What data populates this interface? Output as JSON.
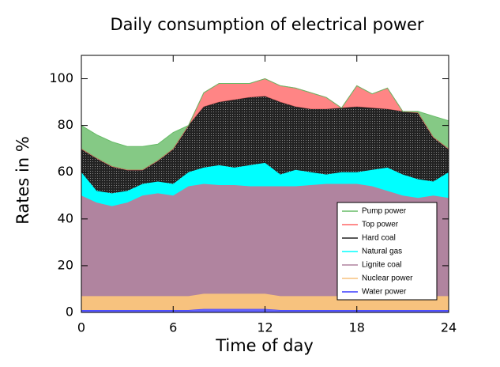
{
  "chart_data": {
    "type": "stacked_area",
    "title": "Daily consumption of electrical power",
    "x_label": "Time of day",
    "y_label": "Rates in %",
    "x": [
      0,
      1,
      2,
      3,
      4,
      5,
      6,
      7,
      8,
      9,
      10,
      11,
      12,
      13,
      14,
      15,
      16,
      17,
      18,
      19,
      20,
      21,
      22,
      23,
      24
    ],
    "xlim": [
      0,
      24
    ],
    "xticks": [
      0,
      6,
      12,
      18,
      24
    ],
    "ylim": [
      0,
      110
    ],
    "yticks": [
      0,
      20,
      40,
      60,
      80,
      100
    ],
    "legend_position": "lower right",
    "series": [
      {
        "name": "Water power",
        "color": "#3a3aff",
        "values": [
          1,
          1,
          1,
          1,
          1,
          1,
          1,
          1,
          1.5,
          1.5,
          1.5,
          1.5,
          1.5,
          1,
          1,
          1,
          1,
          1,
          1,
          1,
          1,
          1,
          1,
          1,
          1
        ]
      },
      {
        "name": "Nuclear power",
        "color": "#f7c27e",
        "values": [
          6,
          6,
          6,
          6,
          6,
          6,
          6,
          6,
          6.5,
          6.5,
          6.5,
          6.5,
          6.5,
          6,
          6,
          6,
          6,
          6,
          6,
          6,
          6,
          6,
          6,
          6,
          6
        ]
      },
      {
        "name": "Lignite coal",
        "color": "#b0849f",
        "values": [
          43,
          40,
          38.5,
          40,
          43,
          44,
          43,
          47,
          47,
          46.5,
          46.5,
          46,
          46,
          47,
          47,
          47.5,
          48,
          48,
          48,
          47,
          45,
          43,
          42,
          43,
          42
        ]
      },
      {
        "name": "Natural gas",
        "color": "#00ffff",
        "values": [
          10,
          5,
          5.5,
          5,
          5,
          5,
          5,
          6,
          7,
          8.5,
          7.5,
          9,
          10,
          5,
          7,
          5.5,
          4,
          5,
          5,
          7,
          10,
          9,
          8,
          6,
          11
        ]
      },
      {
        "name": "Hard coal",
        "color": "#222222",
        "values": [
          10,
          14,
          11.5,
          9,
          6,
          9,
          15,
          20,
          26,
          27,
          29,
          29,
          28.5,
          31,
          27,
          27,
          28,
          27.5,
          28,
          26.5,
          25,
          27,
          28.5,
          19,
          10
        ]
      },
      {
        "name": "Top power",
        "color": "#ff6666",
        "values": [
          0,
          0,
          0,
          0,
          0,
          0,
          0,
          0,
          6,
          8,
          7,
          6,
          7.5,
          7,
          8,
          7,
          5,
          0,
          9,
          6,
          9,
          0,
          0,
          0,
          0
        ]
      },
      {
        "name": "Pump power",
        "color": "#66bb66",
        "values": [
          10,
          10,
          10.5,
          10,
          10,
          7,
          7,
          0,
          0,
          0,
          0,
          0,
          0,
          0,
          0,
          0,
          0,
          0,
          0,
          0,
          0,
          0,
          0.5,
          9,
          12
        ]
      }
    ]
  }
}
